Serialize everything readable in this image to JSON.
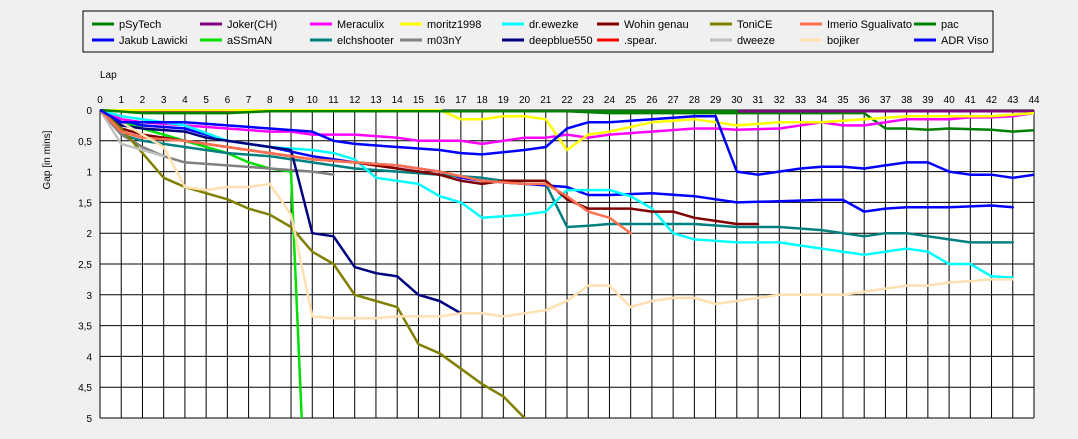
{
  "chart_data": {
    "type": "line",
    "title": "",
    "xlabel": "Lap",
    "ylabel": "Gap [in mins]",
    "xlim": [
      0,
      44
    ],
    "ylim": [
      0,
      5
    ],
    "y_inverted": true,
    "grid": true,
    "legend_position": "top",
    "x_ticks": [
      0,
      1,
      2,
      3,
      4,
      5,
      6,
      7,
      8,
      9,
      10,
      11,
      12,
      13,
      14,
      15,
      16,
      17,
      18,
      19,
      20,
      21,
      22,
      23,
      24,
      25,
      26,
      27,
      28,
      29,
      30,
      31,
      32,
      33,
      34,
      35,
      36,
      37,
      38,
      39,
      40,
      41,
      42,
      43,
      44
    ],
    "y_ticks": [
      0,
      0.5,
      1,
      1.5,
      2,
      2.5,
      3,
      3.5,
      4,
      4.5,
      5
    ],
    "y_tick_labels": [
      "0",
      "0,5",
      "1",
      "1,5",
      "2",
      "2,5",
      "3",
      "3,5",
      "4",
      "4,5",
      "5"
    ],
    "series": [
      {
        "name": "pSyTech",
        "color": "#008000",
        "x": [
          0,
          1,
          2,
          4,
          6,
          8,
          10,
          12,
          14,
          16,
          18,
          20,
          22,
          24,
          26,
          28,
          30,
          32,
          34,
          35,
          36,
          37,
          38,
          39,
          40,
          42,
          43,
          44
        ],
        "y": [
          0,
          0.02,
          0.02,
          0.02,
          0.02,
          0.02,
          0.02,
          0.02,
          0.02,
          0.02,
          0.02,
          0.02,
          0.02,
          0.05,
          0.05,
          0.05,
          0.05,
          0.05,
          0.05,
          0.05,
          0.05,
          0.3,
          0.3,
          0.32,
          0.3,
          0.32,
          0.35,
          0.33
        ]
      },
      {
        "name": "Jakub Lawicki",
        "color": "#0000ff",
        "x": [
          0,
          1,
          2,
          4,
          6,
          8,
          10,
          12,
          14,
          16,
          17,
          18,
          20,
          22,
          23,
          24,
          26,
          28,
          30,
          32,
          34,
          35,
          36,
          37,
          38,
          40,
          42,
          43
        ],
        "y": [
          0,
          0.2,
          0.25,
          0.3,
          0.5,
          0.6,
          0.75,
          0.85,
          0.9,
          1.0,
          1.1,
          1.15,
          1.2,
          1.25,
          1.38,
          1.38,
          1.35,
          1.4,
          1.5,
          1.48,
          1.46,
          1.46,
          1.65,
          1.6,
          1.58,
          1.58,
          1.55,
          1.58
        ]
      },
      {
        "name": "Joker(CH)",
        "color": "#800080",
        "x": [
          0,
          2,
          4,
          6,
          8,
          10,
          12,
          14,
          16,
          18,
          20,
          22,
          24,
          26,
          28,
          30,
          32,
          34,
          36,
          38,
          40,
          42,
          44
        ],
        "y": [
          0,
          0.02,
          0.02,
          0.02,
          0.02,
          0.02,
          0.02,
          0.02,
          0.02,
          0.02,
          0.02,
          0.02,
          0.02,
          0.02,
          0.02,
          0.02,
          0.02,
          0.02,
          0.02,
          0.02,
          0.02,
          0.02,
          0.02
        ]
      },
      {
        "name": "aSSmAN",
        "color": "#00e000",
        "x": [
          0,
          1,
          2,
          4,
          6,
          7,
          8,
          9,
          9.5
        ],
        "y": [
          0,
          0.2,
          0.3,
          0.5,
          0.7,
          0.85,
          0.95,
          1.0,
          5.0
        ]
      },
      {
        "name": "Meraculix",
        "color": "#ff00ff",
        "x": [
          0,
          1,
          2,
          4,
          6,
          8,
          9,
          10,
          11,
          12,
          14,
          15,
          16,
          17,
          18,
          19,
          20,
          21,
          22,
          23,
          24,
          26,
          28,
          29,
          30,
          32,
          34,
          35,
          36,
          38,
          40,
          41,
          42,
          43,
          44
        ],
        "y": [
          0,
          0.15,
          0.2,
          0.25,
          0.3,
          0.35,
          0.35,
          0.4,
          0.4,
          0.4,
          0.45,
          0.5,
          0.5,
          0.5,
          0.55,
          0.5,
          0.45,
          0.45,
          0.4,
          0.45,
          0.4,
          0.35,
          0.3,
          0.3,
          0.32,
          0.3,
          0.2,
          0.25,
          0.25,
          0.15,
          0.15,
          0.12,
          0.12,
          0.1,
          0.05
        ]
      },
      {
        "name": "elchshooter",
        "color": "#008080",
        "x": [
          0,
          1,
          2,
          4,
          6,
          8,
          10,
          12,
          14,
          16,
          18,
          20,
          21,
          22,
          23,
          24,
          26,
          28,
          30,
          32,
          34,
          35,
          36,
          37,
          38,
          39,
          40,
          41,
          42,
          43
        ],
        "y": [
          0,
          0.4,
          0.5,
          0.6,
          0.7,
          0.75,
          0.85,
          0.95,
          1.0,
          1.05,
          1.1,
          1.2,
          1.2,
          1.9,
          1.88,
          1.85,
          1.85,
          1.85,
          1.9,
          1.9,
          1.95,
          2.0,
          2.05,
          2.0,
          2.0,
          2.05,
          2.1,
          2.15,
          2.15,
          2.15
        ]
      },
      {
        "name": "moritz1998",
        "color": "#ffff00",
        "x": [
          0,
          2,
          4,
          6,
          8,
          10,
          12,
          14,
          16,
          17,
          18,
          19,
          20,
          21,
          22,
          23,
          24,
          26,
          28,
          30,
          32,
          34,
          36,
          38,
          40,
          42,
          44
        ],
        "y": [
          0,
          0,
          0,
          0,
          0,
          0,
          0,
          0,
          0,
          0.15,
          0.15,
          0.1,
          0.1,
          0.15,
          0.65,
          0.4,
          0.35,
          0.2,
          0.15,
          0.25,
          0.2,
          0.2,
          0.15,
          0.1,
          0.1,
          0.1,
          0.05
        ]
      },
      {
        "name": "m03nY",
        "color": "#808080",
        "x": [
          0,
          1,
          2,
          3,
          4,
          6,
          8,
          10,
          11
        ],
        "y": [
          0,
          0.4,
          0.6,
          0.75,
          0.85,
          0.9,
          0.95,
          1.0,
          1.05
        ]
      },
      {
        "name": "dr.ewezke",
        "color": "#00ffff",
        "x": [
          0,
          1,
          2,
          4,
          6,
          8,
          10,
          11,
          12,
          13,
          15,
          16,
          17,
          18,
          20,
          21,
          22,
          23,
          24,
          25,
          26,
          27,
          28,
          30,
          32,
          34,
          36,
          37,
          38,
          39,
          40,
          41,
          42,
          43
        ],
        "y": [
          0,
          0.1,
          0.15,
          0.25,
          0.5,
          0.6,
          0.65,
          0.7,
          0.8,
          1.1,
          1.2,
          1.4,
          1.5,
          1.75,
          1.7,
          1.65,
          1.3,
          1.3,
          1.3,
          1.4,
          1.6,
          2.0,
          2.1,
          2.15,
          2.15,
          2.25,
          2.35,
          2.3,
          2.25,
          2.3,
          2.5,
          2.5,
          2.7,
          2.72
        ]
      },
      {
        "name": "deepblue550",
        "color": "#000080",
        "x": [
          0,
          1,
          2,
          4,
          5,
          7,
          8,
          9,
          10,
          11,
          12,
          13,
          14,
          15,
          16,
          17
        ],
        "y": [
          0,
          0.25,
          0.3,
          0.35,
          0.45,
          0.55,
          0.6,
          0.65,
          2.0,
          2.05,
          2.55,
          2.65,
          2.7,
          3.0,
          3.1,
          3.3
        ]
      },
      {
        "name": "Wohin genau",
        "color": "#800000",
        "x": [
          0,
          1,
          2,
          4,
          6,
          8,
          10,
          12,
          14,
          16,
          17,
          18,
          19,
          20,
          21,
          22,
          23,
          24,
          25,
          26,
          27,
          28,
          29,
          30,
          31
        ],
        "y": [
          0,
          0.3,
          0.4,
          0.5,
          0.6,
          0.7,
          0.8,
          0.85,
          0.95,
          1.05,
          1.15,
          1.2,
          1.15,
          1.15,
          1.15,
          1.45,
          1.6,
          1.6,
          1.6,
          1.65,
          1.65,
          1.75,
          1.8,
          1.85,
          1.85
        ]
      },
      {
        "name": ".spear.",
        "color": "#ff0000",
        "x": [
          0,
          1,
          2
        ],
        "y": [
          0,
          0.35,
          0.45
        ]
      },
      {
        "name": "ToniCE",
        "color": "#808000",
        "x": [
          0,
          1,
          2,
          3,
          4,
          5,
          6,
          7,
          8,
          9,
          10,
          11,
          12,
          13,
          14,
          15,
          16,
          17,
          18,
          19,
          20
        ],
        "y": [
          0,
          0.3,
          0.7,
          1.1,
          1.25,
          1.35,
          1.45,
          1.6,
          1.7,
          1.9,
          2.3,
          2.5,
          3.0,
          3.1,
          3.2,
          3.8,
          3.95,
          4.2,
          4.45,
          4.65,
          5.0
        ]
      },
      {
        "name": "dweeze",
        "color": "#c0c0c0",
        "x": [
          0,
          1,
          2,
          3
        ],
        "y": [
          0,
          0.55,
          0.65,
          0.75
        ]
      },
      {
        "name": "Imerio Sgualivato",
        "color": "#ff7050",
        "x": [
          0,
          1,
          2,
          4,
          6,
          8,
          10,
          12,
          14,
          16,
          18,
          20,
          21,
          22,
          23,
          24,
          25
        ],
        "y": [
          0,
          0.35,
          0.45,
          0.5,
          0.6,
          0.7,
          0.8,
          0.85,
          0.9,
          1.0,
          1.15,
          1.2,
          1.2,
          1.4,
          1.65,
          1.75,
          2.0
        ]
      },
      {
        "name": "bojiker",
        "color": "#ffe0b0",
        "x": [
          0,
          1,
          2,
          3,
          4,
          5,
          6,
          7,
          8,
          9,
          10,
          11,
          12,
          13,
          14,
          15,
          16,
          17,
          18,
          19,
          20,
          21,
          22,
          23,
          24,
          25,
          26,
          27,
          28,
          29,
          30,
          31,
          32,
          33,
          34,
          35,
          36,
          37,
          38,
          39,
          40,
          41,
          42,
          43
        ],
        "y": [
          0,
          0.2,
          0.4,
          0.6,
          1.25,
          1.3,
          1.25,
          1.25,
          1.2,
          1.7,
          3.35,
          3.38,
          3.38,
          3.38,
          3.35,
          3.35,
          3.35,
          3.3,
          3.3,
          3.35,
          3.3,
          3.25,
          3.1,
          2.85,
          2.85,
          3.2,
          3.1,
          3.05,
          3.05,
          3.15,
          3.1,
          3.05,
          3.0,
          3.0,
          3.0,
          3.0,
          2.95,
          2.9,
          2.85,
          2.85,
          2.8,
          2.78,
          2.75,
          2.75
        ]
      },
      {
        "name": "pac",
        "color": "#008000",
        "x": [
          0,
          2,
          4,
          6,
          8,
          10,
          12,
          14,
          16,
          18,
          20,
          22,
          24,
          26,
          28,
          30
        ],
        "y": [
          0,
          0.05,
          0.05,
          0.05,
          0.02,
          0.02,
          0.02,
          0.02,
          0.02,
          0.02,
          0.02,
          0.02,
          0.02,
          0.02,
          0.02,
          0.02
        ]
      },
      {
        "name": "ADR Viso",
        "color": "#0000ff",
        "x": [
          0,
          1,
          2,
          4,
          6,
          8,
          10,
          11,
          12,
          14,
          16,
          17,
          18,
          20,
          21,
          22,
          23,
          24,
          26,
          28,
          29,
          30,
          31,
          32,
          33,
          34,
          35,
          36,
          37,
          38,
          39,
          40,
          41,
          42,
          43,
          44
        ],
        "y": [
          0,
          0.2,
          0.2,
          0.2,
          0.25,
          0.3,
          0.35,
          0.5,
          0.55,
          0.6,
          0.65,
          0.7,
          0.72,
          0.65,
          0.6,
          0.3,
          0.2,
          0.2,
          0.15,
          0.1,
          0.1,
          1.0,
          1.05,
          1.0,
          0.95,
          0.92,
          0.92,
          0.95,
          0.9,
          0.85,
          0.85,
          1.0,
          1.05,
          1.05,
          1.1,
          1.05
        ]
      }
    ]
  }
}
